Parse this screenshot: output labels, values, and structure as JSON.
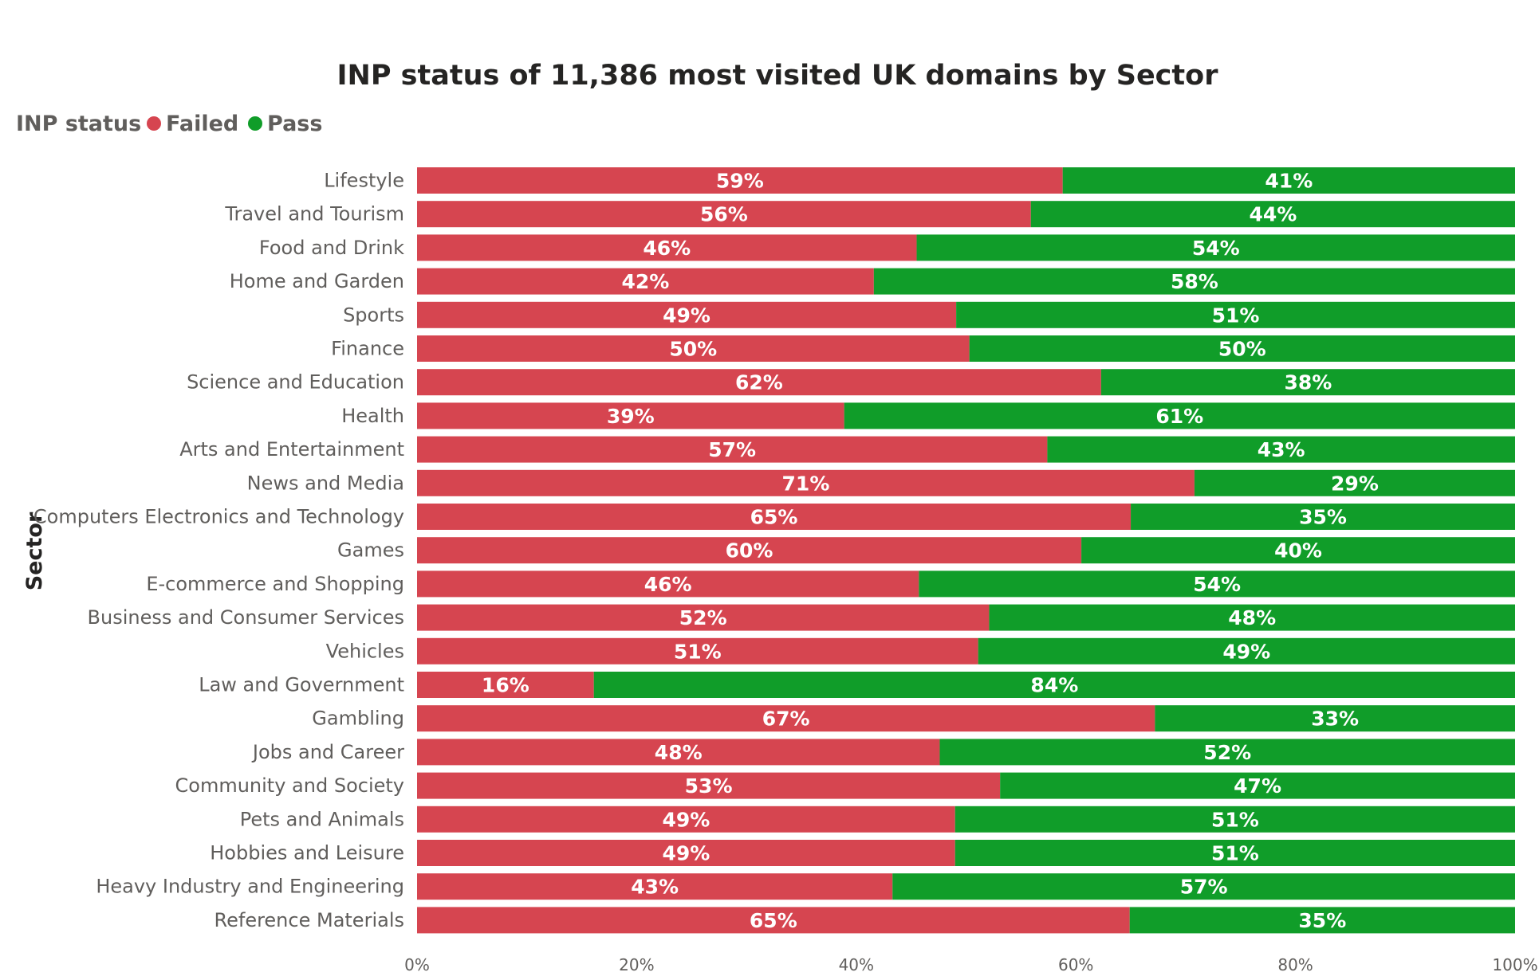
{
  "chart_data": {
    "type": "bar",
    "orientation": "horizontal",
    "stacked": "100%",
    "title": "INP status of 11,386 most visited UK domains by Sector",
    "legend": {
      "title": "INP status",
      "position": "top-left",
      "items": [
        {
          "label": "Failed",
          "color": "#d64550"
        },
        {
          "label": "Pass",
          "color": "#109d29"
        }
      ]
    },
    "ylabel": "Sector",
    "xlabel": "",
    "xlim": [
      0,
      100
    ],
    "x_ticks": [
      "0%",
      "20%",
      "40%",
      "60%",
      "80%",
      "100%"
    ],
    "x_tick_values": [
      0,
      20,
      40,
      60,
      80,
      100
    ],
    "grid": false,
    "categories": [
      "Lifestyle",
      "Travel and Tourism",
      "Food and Drink",
      "Home and Garden",
      "Sports",
      "Finance",
      "Science and Education",
      "Health",
      "Arts and Entertainment",
      "News and Media",
      "Computers Electronics and Technology",
      "Games",
      "E-commerce and Shopping",
      "Business and Consumer Services",
      "Vehicles",
      "Law and Government",
      "Gambling",
      "Jobs and Career",
      "Community and Society",
      "Pets and Animals",
      "Hobbies and Leisure",
      "Heavy Industry and Engineering",
      "Reference Materials"
    ],
    "series": [
      {
        "name": "Failed",
        "color": "#d64550",
        "values": [
          58.8,
          55.9,
          45.5,
          41.6,
          49.1,
          50.3,
          62.3,
          38.9,
          57.4,
          70.8,
          65.0,
          60.5,
          45.7,
          52.1,
          51.1,
          16.1,
          67.2,
          47.6,
          53.1,
          49.0,
          49.0,
          43.3,
          64.9
        ],
        "labels": [
          "59%",
          "56%",
          "46%",
          "42%",
          "49%",
          "50%",
          "62%",
          "39%",
          "57%",
          "71%",
          "65%",
          "60%",
          "46%",
          "52%",
          "51%",
          "16%",
          "67%",
          "48%",
          "53%",
          "49%",
          "49%",
          "43%",
          "65%"
        ]
      },
      {
        "name": "Pass",
        "color": "#109d29",
        "values": [
          41.2,
          44.1,
          54.5,
          58.4,
          50.9,
          49.7,
          37.7,
          61.1,
          42.6,
          29.2,
          35.0,
          39.5,
          54.3,
          47.9,
          48.9,
          83.9,
          32.8,
          52.4,
          46.9,
          51.0,
          51.0,
          56.7,
          35.1
        ],
        "labels": [
          "41%",
          "44%",
          "54%",
          "58%",
          "51%",
          "50%",
          "38%",
          "61%",
          "43%",
          "29%",
          "35%",
          "40%",
          "54%",
          "48%",
          "49%",
          "84%",
          "33%",
          "52%",
          "47%",
          "51%",
          "51%",
          "57%",
          "35%"
        ]
      }
    ]
  }
}
